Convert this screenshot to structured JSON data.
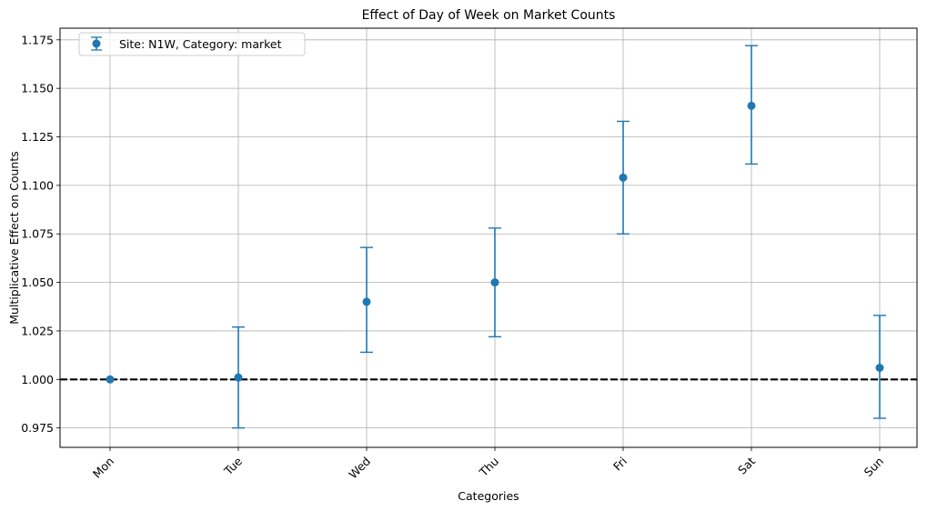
{
  "chart_data": {
    "type": "scatter",
    "title": "Effect of Day of Week on Market Counts",
    "xlabel": "Categories",
    "ylabel": "Multiplicative Effect on Counts",
    "categories": [
      "Mon",
      "Tue",
      "Wed",
      "Thu",
      "Fri",
      "Sat",
      "Sun"
    ],
    "series": [
      {
        "name": "Site: N1W, Category: market",
        "values": [
          1.0,
          1.001,
          1.04,
          1.05,
          1.104,
          1.141,
          1.006
        ],
        "lower": [
          1.0,
          0.975,
          1.014,
          1.022,
          1.075,
          1.111,
          0.98
        ],
        "upper": [
          1.0,
          1.027,
          1.068,
          1.078,
          1.133,
          1.172,
          1.033
        ],
        "color": "#1f77b4"
      }
    ],
    "reference_line": {
      "y": 1.0,
      "style": "dashed",
      "color": "#000000"
    },
    "ylim": [
      0.965,
      1.181
    ],
    "yticks": [
      "0.975",
      "1.000",
      "1.025",
      "1.050",
      "1.075",
      "1.100",
      "1.125",
      "1.150",
      "1.175"
    ],
    "grid": true,
    "legend_position": "top-left"
  }
}
